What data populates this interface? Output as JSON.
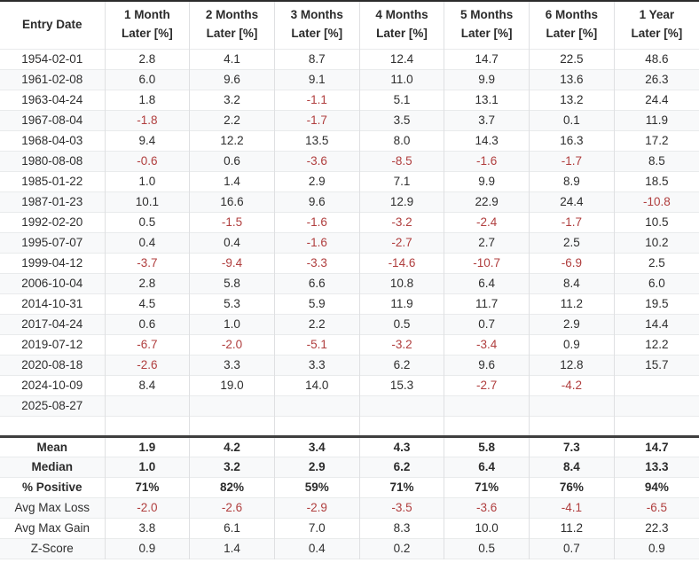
{
  "colors": {
    "negative_value": "#b03e3e",
    "text": "#2e2e2e",
    "row_band": "#f8f9fa",
    "top_border": "#2b2b2b",
    "summary_divider": "#3f3f3f"
  },
  "chart_data": {
    "type": "table",
    "columns": [
      {
        "line1": "Entry Date",
        "line2": ""
      },
      {
        "line1": "1 Month",
        "line2": "Later [%]"
      },
      {
        "line1": "2 Months",
        "line2": "Later [%]"
      },
      {
        "line1": "3 Months",
        "line2": "Later [%]"
      },
      {
        "line1": "4 Months",
        "line2": "Later [%]"
      },
      {
        "line1": "5 Months",
        "line2": "Later [%]"
      },
      {
        "line1": "6 Months",
        "line2": "Later [%]"
      },
      {
        "line1": "1 Year",
        "line2": "Later [%]"
      }
    ],
    "rows": [
      {
        "date": "1954-02-01",
        "values": [
          "2.8",
          "4.1",
          "8.7",
          "12.4",
          "14.7",
          "22.5",
          "48.6"
        ]
      },
      {
        "date": "1961-02-08",
        "values": [
          "6.0",
          "9.6",
          "9.1",
          "11.0",
          "9.9",
          "13.6",
          "26.3"
        ]
      },
      {
        "date": "1963-04-24",
        "values": [
          "1.8",
          "3.2",
          "-1.1",
          "5.1",
          "13.1",
          "13.2",
          "24.4"
        ]
      },
      {
        "date": "1967-08-04",
        "values": [
          "-1.8",
          "2.2",
          "-1.7",
          "3.5",
          "3.7",
          "0.1",
          "11.9"
        ]
      },
      {
        "date": "1968-04-03",
        "values": [
          "9.4",
          "12.2",
          "13.5",
          "8.0",
          "14.3",
          "16.3",
          "17.2"
        ]
      },
      {
        "date": "1980-08-08",
        "values": [
          "-0.6",
          "0.6",
          "-3.6",
          "-8.5",
          "-1.6",
          "-1.7",
          "8.5"
        ]
      },
      {
        "date": "1985-01-22",
        "values": [
          "1.0",
          "1.4",
          "2.9",
          "7.1",
          "9.9",
          "8.9",
          "18.5"
        ]
      },
      {
        "date": "1987-01-23",
        "values": [
          "10.1",
          "16.6",
          "9.6",
          "12.9",
          "22.9",
          "24.4",
          "-10.8"
        ]
      },
      {
        "date": "1992-02-20",
        "values": [
          "0.5",
          "-1.5",
          "-1.6",
          "-3.2",
          "-2.4",
          "-1.7",
          "10.5"
        ]
      },
      {
        "date": "1995-07-07",
        "values": [
          "0.4",
          "0.4",
          "-1.6",
          "-2.7",
          "2.7",
          "2.5",
          "10.2"
        ]
      },
      {
        "date": "1999-04-12",
        "values": [
          "-3.7",
          "-9.4",
          "-3.3",
          "-14.6",
          "-10.7",
          "-6.9",
          "2.5"
        ]
      },
      {
        "date": "2006-10-04",
        "values": [
          "2.8",
          "5.8",
          "6.6",
          "10.8",
          "6.4",
          "8.4",
          "6.0"
        ]
      },
      {
        "date": "2014-10-31",
        "values": [
          "4.5",
          "5.3",
          "5.9",
          "11.9",
          "11.7",
          "11.2",
          "19.5"
        ]
      },
      {
        "date": "2017-04-24",
        "values": [
          "0.6",
          "1.0",
          "2.2",
          "0.5",
          "0.7",
          "2.9",
          "14.4"
        ]
      },
      {
        "date": "2019-07-12",
        "values": [
          "-6.7",
          "-2.0",
          "-5.1",
          "-3.2",
          "-3.4",
          "0.9",
          "12.2"
        ]
      },
      {
        "date": "2020-08-18",
        "values": [
          "-2.6",
          "3.3",
          "3.3",
          "6.2",
          "9.6",
          "12.8",
          "15.7"
        ]
      },
      {
        "date": "2024-10-09",
        "values": [
          "8.4",
          "19.0",
          "14.0",
          "15.3",
          "-2.7",
          "-4.2",
          ""
        ]
      },
      {
        "date": "2025-08-27",
        "values": [
          "",
          "",
          "",
          "",
          "",
          "",
          ""
        ]
      },
      {
        "date": "",
        "values": [
          "",
          "",
          "",
          "",
          "",
          "",
          ""
        ]
      }
    ],
    "summary_rows": [
      {
        "label": "Mean",
        "bold": true,
        "values": [
          "1.9",
          "4.2",
          "3.4",
          "4.3",
          "5.8",
          "7.3",
          "14.7"
        ]
      },
      {
        "label": "Median",
        "bold": true,
        "values": [
          "1.0",
          "3.2",
          "2.9",
          "6.2",
          "6.4",
          "8.4",
          "13.3"
        ]
      },
      {
        "label": "% Positive",
        "bold": true,
        "values": [
          "71%",
          "82%",
          "59%",
          "71%",
          "71%",
          "76%",
          "94%"
        ]
      },
      {
        "label": "Avg Max Loss",
        "bold": false,
        "values": [
          "-2.0",
          "-2.6",
          "-2.9",
          "-3.5",
          "-3.6",
          "-4.1",
          "-6.5"
        ]
      },
      {
        "label": "Avg Max Gain",
        "bold": false,
        "values": [
          "3.8",
          "6.1",
          "7.0",
          "8.3",
          "10.0",
          "11.2",
          "22.3"
        ]
      },
      {
        "label": "Z-Score",
        "bold": false,
        "values": [
          "0.9",
          "1.4",
          "0.4",
          "0.2",
          "0.5",
          "0.7",
          "0.9"
        ]
      }
    ]
  }
}
